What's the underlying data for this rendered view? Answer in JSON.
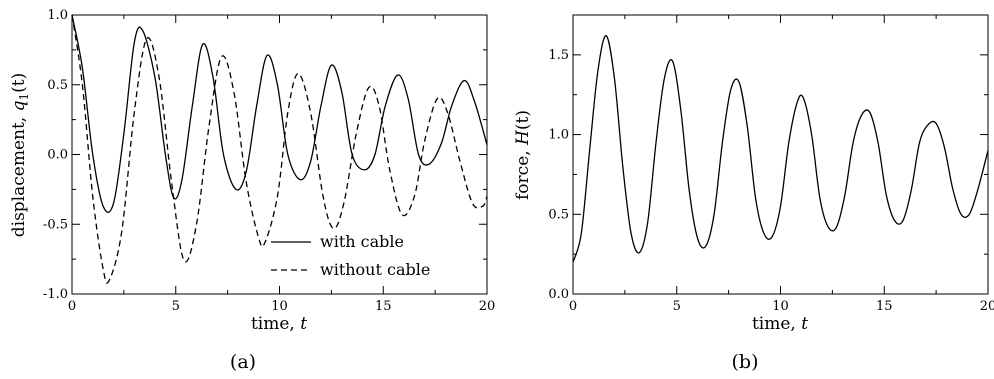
{
  "chart_data": [
    {
      "type": "line",
      "panel_label": "(a)",
      "xlabel": "time, ",
      "xlabel_var": "t",
      "ylabel": "displacement, ",
      "ylabel_var": "q",
      "ylabel_sub": "1",
      "ylabel_arg": "(t)",
      "xlim": [
        0,
        20
      ],
      "ylim": [
        -1.0,
        1.0
      ],
      "xticks": [
        "0",
        "5",
        "10",
        "15",
        "20"
      ],
      "yticks": [
        "-1.0",
        "-0.5",
        "0.0",
        "0.5",
        "1.0"
      ],
      "legend_position": "lower-right",
      "grid": false,
      "series": [
        {
          "name": "with cable",
          "style": "solid",
          "x": [
            0,
            0.5,
            1.0,
            1.5,
            2.0,
            2.5,
            3.0,
            3.4,
            4.0,
            4.5,
            4.9,
            5.3,
            5.8,
            6.3,
            6.8,
            7.3,
            7.9,
            8.4,
            8.9,
            9.4,
            9.9,
            10.4,
            11.0,
            11.5,
            12.0,
            12.5,
            13.0,
            13.5,
            14.1,
            14.6,
            15.1,
            15.7,
            16.2,
            16.7,
            17.2,
            17.8,
            18.3,
            18.9,
            19.4,
            20.0
          ],
          "y": [
            1.0,
            0.62,
            0.0,
            -0.37,
            -0.35,
            0.15,
            0.8,
            0.89,
            0.55,
            0.0,
            -0.31,
            -0.18,
            0.35,
            0.79,
            0.55,
            0.0,
            -0.25,
            -0.12,
            0.35,
            0.71,
            0.5,
            0.0,
            -0.18,
            -0.05,
            0.35,
            0.64,
            0.45,
            0.0,
            -0.11,
            0.0,
            0.35,
            0.57,
            0.4,
            0.0,
            -0.07,
            0.08,
            0.35,
            0.53,
            0.38,
            0.07
          ]
        },
        {
          "name": "without cable",
          "style": "dashed",
          "x": [
            0,
            0.5,
            1.0,
            1.5,
            1.8,
            2.4,
            3.0,
            3.6,
            4.2,
            4.8,
            5.4,
            6.0,
            6.6,
            7.2,
            7.8,
            8.4,
            9.0,
            9.3,
            9.9,
            10.4,
            10.9,
            11.5,
            12.1,
            12.6,
            13.1,
            13.7,
            14.3,
            14.8,
            15.3,
            15.9,
            16.5,
            17.0,
            17.6,
            18.1,
            18.7,
            19.3,
            19.8,
            20.0
          ],
          "y": [
            1.0,
            0.5,
            -0.3,
            -0.82,
            -0.9,
            -0.55,
            0.3,
            0.83,
            0.55,
            -0.2,
            -0.76,
            -0.5,
            0.2,
            0.7,
            0.45,
            -0.2,
            -0.6,
            -0.63,
            -0.3,
            0.3,
            0.58,
            0.3,
            -0.3,
            -0.53,
            -0.35,
            0.15,
            0.48,
            0.35,
            -0.1,
            -0.43,
            -0.3,
            0.1,
            0.4,
            0.3,
            -0.05,
            -0.35,
            -0.37,
            -0.3
          ]
        }
      ]
    },
    {
      "type": "line",
      "panel_label": "(b)",
      "xlabel": "time, ",
      "xlabel_var": "t",
      "ylabel": "force, ",
      "ylabel_var": "H",
      "ylabel_arg": "(t)",
      "xlim": [
        0,
        20
      ],
      "ylim": [
        0.0,
        1.75
      ],
      "xticks": [
        "0",
        "5",
        "10",
        "15",
        "20"
      ],
      "yticks": [
        "0.0",
        "0.5",
        "1.0",
        "1.5"
      ],
      "grid": false,
      "series": [
        {
          "name": "",
          "style": "solid",
          "x": [
            0,
            0.4,
            0.8,
            1.2,
            1.6,
            2.0,
            2.4,
            2.8,
            3.2,
            3.6,
            4.0,
            4.4,
            4.8,
            5.2,
            5.6,
            6.0,
            6.4,
            6.8,
            7.2,
            7.6,
            8.0,
            8.4,
            8.8,
            9.2,
            9.6,
            10.0,
            10.4,
            10.8,
            11.1,
            11.5,
            11.9,
            12.3,
            12.7,
            13.1,
            13.5,
            13.9,
            14.3,
            14.7,
            15.1,
            15.5,
            15.9,
            16.3,
            16.7,
            17.1,
            17.5,
            17.9,
            18.3,
            18.7,
            19.1,
            19.5,
            20.0
          ],
          "y": [
            0.2,
            0.38,
            0.9,
            1.4,
            1.62,
            1.35,
            0.8,
            0.38,
            0.26,
            0.45,
            0.95,
            1.35,
            1.46,
            1.15,
            0.65,
            0.35,
            0.3,
            0.5,
            0.95,
            1.28,
            1.33,
            1.05,
            0.6,
            0.38,
            0.36,
            0.55,
            0.95,
            1.2,
            1.23,
            1.0,
            0.6,
            0.42,
            0.42,
            0.62,
            0.95,
            1.12,
            1.14,
            0.95,
            0.62,
            0.46,
            0.46,
            0.65,
            0.95,
            1.06,
            1.07,
            0.92,
            0.66,
            0.5,
            0.5,
            0.65,
            0.9
          ]
        }
      ]
    }
  ]
}
